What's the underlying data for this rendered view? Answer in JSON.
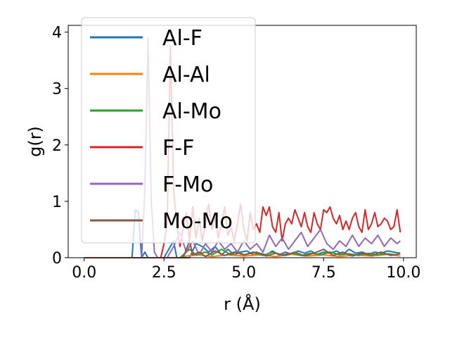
{
  "chart_data": {
    "type": "line",
    "xlabel": "r (Å)",
    "ylabel": "g(r)",
    "xlim": [
      -0.5,
      10.4
    ],
    "ylim": [
      0,
      4.12
    ],
    "xticks": [
      0.0,
      2.5,
      5.0,
      7.5,
      10.0
    ],
    "xtick_labels": [
      "0.0",
      "2.5",
      "5.0",
      "7.5",
      "10.0"
    ],
    "yticks": [
      0,
      1,
      2,
      3,
      4
    ],
    "ytick_labels": [
      "0",
      "1",
      "2",
      "3",
      "4"
    ],
    "grid": false,
    "legend_position": "upper-left",
    "series": [
      {
        "name": "Al-F",
        "color": "#1f77b4",
        "points": [
          [
            0.0,
            0
          ],
          [
            1.5,
            0
          ],
          [
            1.6,
            0.85
          ],
          [
            1.7,
            0.8
          ],
          [
            1.8,
            0.0
          ],
          [
            1.9,
            0.1
          ],
          [
            2.0,
            0
          ],
          [
            2.5,
            0
          ],
          [
            2.8,
            0.3
          ],
          [
            2.9,
            0
          ],
          [
            3.3,
            0
          ],
          [
            3.5,
            0.25
          ],
          [
            3.7,
            0.2
          ],
          [
            3.9,
            0.1
          ],
          [
            4.1,
            0.2
          ],
          [
            4.3,
            0.05
          ],
          [
            4.5,
            0.15
          ],
          [
            4.7,
            0.05
          ],
          [
            4.9,
            0.1
          ],
          [
            5.1,
            0.12
          ],
          [
            5.3,
            0.05
          ],
          [
            5.5,
            0.08
          ],
          [
            5.7,
            0.05
          ],
          [
            5.9,
            0.12
          ],
          [
            6.1,
            0.05
          ],
          [
            6.3,
            0.1
          ],
          [
            6.5,
            0.06
          ],
          [
            6.7,
            0.12
          ],
          [
            6.9,
            0.08
          ],
          [
            7.1,
            0.12
          ],
          [
            7.3,
            0.06
          ],
          [
            7.5,
            0.1
          ],
          [
            7.7,
            0.08
          ],
          [
            7.9,
            0.12
          ],
          [
            8.1,
            0.06
          ],
          [
            8.3,
            0.15
          ],
          [
            8.5,
            0.08
          ],
          [
            8.7,
            0.1
          ],
          [
            8.9,
            0.06
          ],
          [
            9.1,
            0.1
          ],
          [
            9.3,
            0.08
          ],
          [
            9.5,
            0.12
          ],
          [
            9.7,
            0.1
          ],
          [
            9.9,
            0.08
          ]
        ]
      },
      {
        "name": "Al-Al",
        "color": "#ff7f0e",
        "points": [
          [
            0.0,
            0
          ],
          [
            3.0,
            0
          ],
          [
            3.2,
            0.03
          ],
          [
            3.6,
            0.05
          ],
          [
            4.0,
            0.02
          ],
          [
            4.5,
            0.05
          ],
          [
            5.0,
            0.03
          ],
          [
            5.5,
            0.05
          ],
          [
            6.0,
            0.02
          ],
          [
            6.5,
            0.06
          ],
          [
            7.0,
            0.03
          ],
          [
            7.5,
            0.05
          ],
          [
            8.0,
            0.02
          ],
          [
            8.5,
            0.05
          ],
          [
            9.0,
            0.03
          ],
          [
            9.5,
            0.06
          ],
          [
            9.9,
            0.03
          ]
        ]
      },
      {
        "name": "Al-Mo",
        "color": "#2ca02c",
        "points": [
          [
            0.0,
            0
          ],
          [
            3.0,
            0
          ],
          [
            3.3,
            0.15
          ],
          [
            3.5,
            0.05
          ],
          [
            3.8,
            0.1
          ],
          [
            4.0,
            0.05
          ],
          [
            4.3,
            0.15
          ],
          [
            4.6,
            0.05
          ],
          [
            4.8,
            0.12
          ],
          [
            5.0,
            0.05
          ],
          [
            5.3,
            0.1
          ],
          [
            5.6,
            0.04
          ],
          [
            5.9,
            0.1
          ],
          [
            6.2,
            0.05
          ],
          [
            6.5,
            0.08
          ],
          [
            6.8,
            0.04
          ],
          [
            7.1,
            0.08
          ],
          [
            7.4,
            0.05
          ],
          [
            7.7,
            0.1
          ],
          [
            8.0,
            0.05
          ],
          [
            8.3,
            0.07
          ],
          [
            8.6,
            0.04
          ],
          [
            8.9,
            0.08
          ],
          [
            9.2,
            0.05
          ],
          [
            9.5,
            0.07
          ],
          [
            9.8,
            0.05
          ]
        ]
      },
      {
        "name": "F-F",
        "color": "#d62728",
        "points": [
          [
            0.0,
            0
          ],
          [
            2.4,
            0
          ],
          [
            2.5,
            0.25
          ],
          [
            2.6,
            0.6
          ],
          [
            2.7,
            3.75
          ],
          [
            2.8,
            1.2
          ],
          [
            2.9,
            0.6
          ],
          [
            3.0,
            0.2
          ],
          [
            3.1,
            0.5
          ],
          [
            3.2,
            0.8
          ],
          [
            3.3,
            0.3
          ],
          [
            3.4,
            0.9
          ],
          [
            3.5,
            0.35
          ],
          [
            3.6,
            0.7
          ],
          [
            3.7,
            0.3
          ],
          [
            3.8,
            0.6
          ],
          [
            3.9,
            0.95
          ],
          [
            4.0,
            0.5
          ],
          [
            4.1,
            0.7
          ],
          [
            4.2,
            0.35
          ],
          [
            4.3,
            0.6
          ],
          [
            4.4,
            0.9
          ],
          [
            4.5,
            0.4
          ],
          [
            4.6,
            0.55
          ],
          [
            4.7,
            0.3
          ],
          [
            4.8,
            0.6
          ],
          [
            4.9,
            0.95
          ],
          [
            5.0,
            0.5
          ],
          [
            5.1,
            0.3
          ],
          [
            5.2,
            0.8
          ],
          [
            5.3,
            0.5
          ],
          [
            5.4,
            0.6
          ],
          [
            5.5,
            0.45
          ],
          [
            5.6,
            0.9
          ],
          [
            5.7,
            0.75
          ],
          [
            5.8,
            0.9
          ],
          [
            5.9,
            0.55
          ],
          [
            6.0,
            0.45
          ],
          [
            6.1,
            0.8
          ],
          [
            6.2,
            0.3
          ],
          [
            6.3,
            0.6
          ],
          [
            6.4,
            0.7
          ],
          [
            6.5,
            0.6
          ],
          [
            6.6,
            0.85
          ],
          [
            6.7,
            0.7
          ],
          [
            6.8,
            0.55
          ],
          [
            6.9,
            0.8
          ],
          [
            7.0,
            0.55
          ],
          [
            7.1,
            0.45
          ],
          [
            7.2,
            0.8
          ],
          [
            7.3,
            0.6
          ],
          [
            7.4,
            0.5
          ],
          [
            7.5,
            0.85
          ],
          [
            7.6,
            0.8
          ],
          [
            7.7,
            0.9
          ],
          [
            7.8,
            0.7
          ],
          [
            7.9,
            0.6
          ],
          [
            8.0,
            0.75
          ],
          [
            8.1,
            0.5
          ],
          [
            8.2,
            0.65
          ],
          [
            8.3,
            0.5
          ],
          [
            8.4,
            0.7
          ],
          [
            8.5,
            0.8
          ],
          [
            8.6,
            0.55
          ],
          [
            8.7,
            0.45
          ],
          [
            8.8,
            0.85
          ],
          [
            8.9,
            0.5
          ],
          [
            9.0,
            0.6
          ],
          [
            9.1,
            0.8
          ],
          [
            9.2,
            0.55
          ],
          [
            9.3,
            0.6
          ],
          [
            9.4,
            0.7
          ],
          [
            9.5,
            0.65
          ],
          [
            9.6,
            0.5
          ],
          [
            9.7,
            0.55
          ],
          [
            9.8,
            0.85
          ],
          [
            9.9,
            0.45
          ]
        ]
      },
      {
        "name": "F-Mo",
        "color": "#9467bd",
        "points": [
          [
            0.0,
            0
          ],
          [
            1.8,
            0
          ],
          [
            1.9,
            1.2
          ],
          [
            2.0,
            3.9
          ],
          [
            2.1,
            1.0
          ],
          [
            2.2,
            0.1
          ],
          [
            2.3,
            0
          ],
          [
            2.6,
            0
          ],
          [
            2.8,
            0.2
          ],
          [
            3.0,
            0.45
          ],
          [
            3.2,
            0.1
          ],
          [
            3.4,
            0.3
          ],
          [
            3.6,
            0.05
          ],
          [
            3.8,
            0.25
          ],
          [
            4.0,
            0.1
          ],
          [
            4.2,
            0.3
          ],
          [
            4.4,
            0.15
          ],
          [
            4.6,
            0.25
          ],
          [
            4.8,
            0.1
          ],
          [
            5.0,
            0.3
          ],
          [
            5.2,
            0.15
          ],
          [
            5.4,
            0.25
          ],
          [
            5.6,
            0.1
          ],
          [
            5.8,
            0.4
          ],
          [
            6.0,
            0.2
          ],
          [
            6.2,
            0.35
          ],
          [
            6.4,
            0.15
          ],
          [
            6.6,
            0.3
          ],
          [
            6.8,
            0.45
          ],
          [
            7.0,
            0.2
          ],
          [
            7.2,
            0.35
          ],
          [
            7.4,
            0.5
          ],
          [
            7.6,
            0.25
          ],
          [
            7.8,
            0.15
          ],
          [
            8.0,
            0.3
          ],
          [
            8.2,
            0.2
          ],
          [
            8.4,
            0.4
          ],
          [
            8.6,
            0.2
          ],
          [
            8.8,
            0.35
          ],
          [
            9.0,
            0.25
          ],
          [
            9.2,
            0.4
          ],
          [
            9.4,
            0.2
          ],
          [
            9.6,
            0.35
          ],
          [
            9.8,
            0.25
          ],
          [
            9.9,
            0.3
          ]
        ]
      },
      {
        "name": "Mo-Mo",
        "color": "#8c564b",
        "points": [
          [
            0.0,
            0
          ],
          [
            3.1,
            0
          ],
          [
            3.3,
            0.3
          ],
          [
            3.4,
            0.05
          ],
          [
            3.6,
            0.1
          ],
          [
            3.8,
            0.02
          ],
          [
            4.1,
            0.12
          ],
          [
            4.4,
            0.04
          ],
          [
            4.7,
            0.1
          ],
          [
            5.0,
            0.05
          ],
          [
            5.4,
            0.1
          ],
          [
            5.7,
            0.03
          ],
          [
            6.0,
            0.08
          ],
          [
            6.3,
            0.04
          ],
          [
            6.6,
            0.1
          ],
          [
            6.9,
            0.03
          ],
          [
            7.2,
            0.08
          ],
          [
            7.5,
            0.15
          ],
          [
            7.8,
            0.04
          ],
          [
            8.1,
            0.1
          ],
          [
            8.4,
            0.03
          ],
          [
            8.7,
            0.08
          ],
          [
            9.0,
            0.04
          ],
          [
            9.3,
            0.1
          ],
          [
            9.6,
            0.04
          ],
          [
            9.9,
            0.07
          ]
        ]
      }
    ]
  }
}
